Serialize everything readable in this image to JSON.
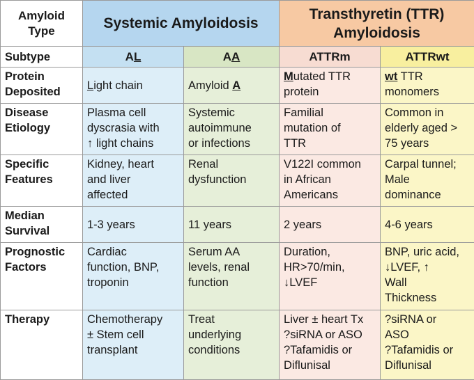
{
  "header": {
    "amyloid_type": "Amyloid\nType",
    "systemic": "Systemic Amyloidosis",
    "ttr": "Transthyretin (TTR)\nAmyloidosis"
  },
  "subtype_row": {
    "label": "Subtype",
    "al": {
      "prefix": "A",
      "underlined": "L"
    },
    "aa": {
      "prefix": "A",
      "underlined": "A"
    },
    "attrm": "ATTRm",
    "attrwt": "ATTRwt"
  },
  "protein_row": {
    "label": "Protein\nDeposited",
    "al": {
      "underlined": "L",
      "rest": "ight chain"
    },
    "aa": {
      "prefix": "Amyloid ",
      "underlined": "A"
    },
    "attrm": {
      "underlined": "M",
      "rest": "utated TTR\nprotein"
    },
    "attrwt": {
      "underlined": "wt",
      "rest": " TTR\nmonomers"
    }
  },
  "rows": [
    {
      "key": "etiology",
      "label": "Disease\nEtiology",
      "al": "Plasma cell\ndyscrasia with\n↑ light chains",
      "aa": "Systemic\nautoimmune\nor infections",
      "attrm": "Familial\nmutation of\nTTR",
      "attrwt": "Common in\nelderly aged >\n75 years"
    },
    {
      "key": "features",
      "label": "Specific\nFeatures",
      "al": "Kidney, heart\nand liver\naffected",
      "aa": "Renal\ndysfunction",
      "attrm": "V122I common\nin African\nAmericans",
      "attrwt": "Carpal tunnel;\nMale\ndominance"
    },
    {
      "key": "survival",
      "label": "Median\nSurvival",
      "al": "1-3 years",
      "aa": "11 years",
      "attrm": "2 years",
      "attrwt": "4-6 years"
    },
    {
      "key": "prognostic",
      "label": "Prognostic\nFactors",
      "al": "Cardiac\nfunction, BNP,\ntroponin",
      "aa": "Serum AA\nlevels, renal\nfunction",
      "attrm": "Duration,\nHR>70/min,\n↓LVEF",
      "attrwt": "BNP, uric acid,\n↓LVEF, ↑\nWall\nThickness"
    },
    {
      "key": "therapy",
      "label": "Therapy",
      "al": "Chemotherapy\n± Stem cell\ntransplant",
      "aa": "Treat\nunderlying\nconditions",
      "attrm": "Liver ± heart Tx\n?siRNA or ASO\n?Tafamidis or\nDiflunisal",
      "attrwt": "?siRNA or\nASO\n?Tafamidis or\nDiflunisal"
    }
  ]
}
